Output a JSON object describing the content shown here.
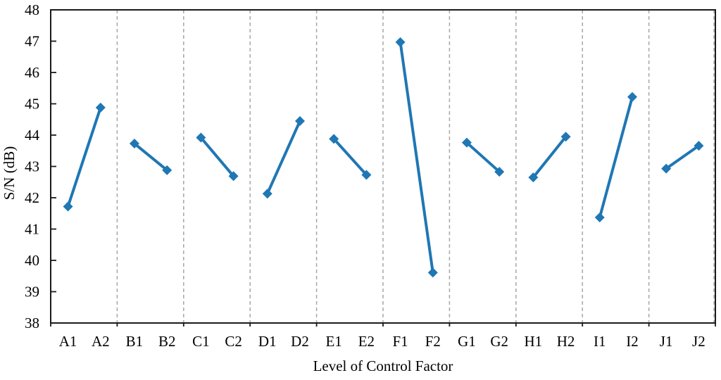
{
  "chart_data": {
    "type": "line",
    "title": "",
    "xlabel": "Level of Control Factor",
    "ylabel": "S/N (dB)",
    "ylim": [
      38,
      48
    ],
    "ytick_step": 1,
    "ytick_labels": [
      "38",
      "39",
      "40",
      "41",
      "42",
      "43",
      "44",
      "45",
      "46",
      "47",
      "48"
    ],
    "grid": "vertical-dashed-between-groups",
    "legend": "none",
    "marker": "diamond",
    "categories": [
      "A1",
      "A2",
      "B1",
      "B2",
      "C1",
      "C2",
      "D1",
      "D2",
      "E1",
      "E2",
      "F1",
      "F2",
      "G1",
      "G2",
      "H1",
      "H2",
      "I1",
      "I2",
      "J1",
      "J2"
    ],
    "values": [
      41.72,
      44.88,
      43.73,
      42.88,
      43.92,
      42.69,
      42.13,
      44.45,
      43.88,
      42.73,
      46.97,
      39.61,
      43.76,
      42.83,
      42.65,
      43.95,
      41.37,
      45.22,
      42.93,
      43.66
    ],
    "groups": [
      {
        "factor": "A",
        "levels": [
          "A1",
          "A2"
        ],
        "values": [
          41.72,
          44.88
        ]
      },
      {
        "factor": "B",
        "levels": [
          "B1",
          "B2"
        ],
        "values": [
          43.73,
          42.88
        ]
      },
      {
        "factor": "C",
        "levels": [
          "C1",
          "C2"
        ],
        "values": [
          43.92,
          42.69
        ]
      },
      {
        "factor": "D",
        "levels": [
          "D1",
          "D2"
        ],
        "values": [
          42.13,
          44.45
        ]
      },
      {
        "factor": "E",
        "levels": [
          "E1",
          "E2"
        ],
        "values": [
          43.88,
          42.73
        ]
      },
      {
        "factor": "F",
        "levels": [
          "F1",
          "F2"
        ],
        "values": [
          46.97,
          39.61
        ]
      },
      {
        "factor": "G",
        "levels": [
          "G1",
          "G2"
        ],
        "values": [
          43.76,
          42.83
        ]
      },
      {
        "factor": "H",
        "levels": [
          "H1",
          "H2"
        ],
        "values": [
          42.65,
          43.95
        ]
      },
      {
        "factor": "I",
        "levels": [
          "I1",
          "I2"
        ],
        "values": [
          41.37,
          45.22
        ]
      },
      {
        "factor": "J",
        "levels": [
          "J1",
          "J2"
        ],
        "values": [
          42.93,
          43.66
        ]
      }
    ],
    "style": {
      "line_color": "#1f77b4",
      "grid_color": "#a6a6a6",
      "axis_color": "#1a1a1a",
      "background": "#ffffff"
    }
  }
}
